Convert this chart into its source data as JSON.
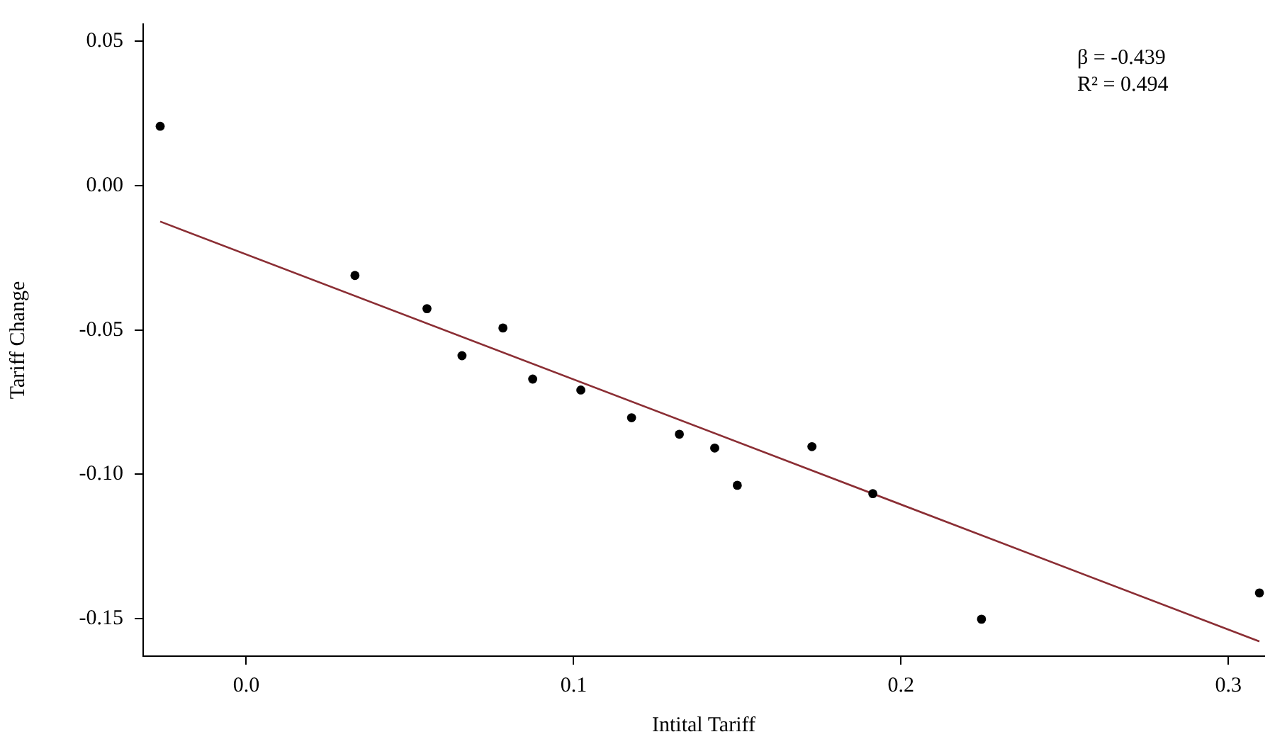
{
  "chart_data": {
    "type": "scatter",
    "xlabel": "Intital Tariff",
    "ylabel": "Tariff Change",
    "annotations": [
      "β = -0.439",
      "R² = 0.494"
    ],
    "x": [
      -0.0263,
      0.0332,
      0.0552,
      0.0659,
      0.0784,
      0.0875,
      0.1022,
      0.1177,
      0.1323,
      0.1431,
      0.15,
      0.1728,
      0.1914,
      0.2246,
      0.3095
    ],
    "series": [
      {
        "color": "#000000",
        "marker": "circle",
        "values": [
          0.0206,
          -0.0311,
          -0.0426,
          -0.0589,
          -0.0493,
          -0.067,
          -0.0708,
          -0.0804,
          -0.0861,
          -0.0909,
          -0.1038,
          -0.0904,
          -0.1067,
          -0.1502,
          -0.1411
        ]
      },
      {
        "type": "line",
        "color": "#8b2e34",
        "marker": "none",
        "x": [
          -0.0263,
          0.3095
        ],
        "values": [
          -0.0124,
          -0.1579
        ]
      }
    ],
    "xlim": [
      -0.0315,
      0.311
    ],
    "ylim": [
      -0.163,
      0.056
    ],
    "xticks": [
      {
        "value": 0,
        "label": "0.0"
      },
      {
        "value": 0.1,
        "label": "0.1"
      },
      {
        "value": 0.2,
        "label": "0.2"
      },
      {
        "value": 0.3,
        "label": "0.3"
      }
    ],
    "yticks": [
      {
        "value": -0.15,
        "label": "-0.15"
      },
      {
        "value": -0.1,
        "label": "-0.10"
      },
      {
        "value": -0.05,
        "label": "-0.05"
      },
      {
        "value": 0,
        "label": "0.00"
      },
      {
        "value": 0.05,
        "label": "0.05"
      }
    ],
    "grid": false,
    "legend": false
  }
}
